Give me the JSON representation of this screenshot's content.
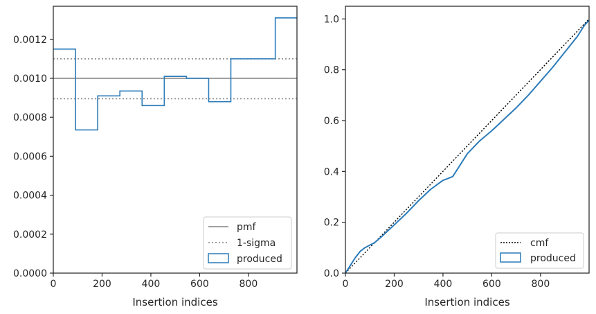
{
  "chart_data": [
    {
      "type": "histogram-step",
      "xlabel": "Insertion indices",
      "ylabel": "",
      "xlim": [
        0,
        999
      ],
      "ylim": [
        0,
        0.00137
      ],
      "xticks": [
        0,
        200,
        400,
        600,
        800
      ],
      "yticks": [
        0.0,
        0.0002,
        0.0004,
        0.0006,
        0.0008,
        0.001,
        0.0012
      ],
      "ytick_labels": [
        "0.0000",
        "0.0002",
        "0.0004",
        "0.0006",
        "0.0008",
        "0.0010",
        "0.0012"
      ],
      "bin_edges": [
        0,
        91,
        182,
        273,
        364,
        455,
        546,
        637,
        728,
        819,
        910,
        999
      ],
      "values": [
        0.00115,
        0.000735,
        0.00091,
        0.000935,
        0.00086,
        0.00101,
        0.001,
        0.00088,
        0.0011,
        0.0011,
        0.00131
      ],
      "pmf": 0.001,
      "sigma_upper": 0.0011,
      "sigma_lower": 0.000895,
      "legend_position": "lower right",
      "legend": [
        "pmf",
        "1-sigma",
        "produced"
      ],
      "colors": {
        "pmf": "#808080",
        "sigma": "#808080",
        "produced": "#2b7bb9"
      }
    },
    {
      "type": "line",
      "xlabel": "Insertion indices",
      "ylabel": "",
      "xlim": [
        0,
        999
      ],
      "ylim": [
        0,
        1.05
      ],
      "xticks": [
        0,
        200,
        400,
        600,
        800
      ],
      "yticks": [
        0.0,
        0.2,
        0.4,
        0.6,
        0.8,
        1.0
      ],
      "ytick_labels": [
        "0.0",
        "0.2",
        "0.4",
        "0.6",
        "0.8",
        "1.0"
      ],
      "cmf": {
        "x": [
          0,
          999
        ],
        "y": [
          0,
          1.0
        ]
      },
      "produced": {
        "x": [
          0,
          20,
          40,
          60,
          80,
          100,
          120,
          150,
          200,
          250,
          300,
          350,
          400,
          420,
          440,
          460,
          500,
          550,
          600,
          650,
          700,
          750,
          800,
          850,
          900,
          950,
          980,
          999
        ],
        "y": [
          0,
          0.03,
          0.06,
          0.085,
          0.1,
          0.11,
          0.12,
          0.145,
          0.19,
          0.235,
          0.285,
          0.33,
          0.365,
          0.372,
          0.38,
          0.41,
          0.47,
          0.52,
          0.56,
          0.605,
          0.65,
          0.7,
          0.755,
          0.81,
          0.87,
          0.93,
          0.975,
          0.995
        ]
      },
      "legend_position": "lower right",
      "legend": [
        "cmf",
        "produced"
      ],
      "colors": {
        "cmf": "#000000",
        "produced": "#2b7bb9"
      }
    }
  ]
}
